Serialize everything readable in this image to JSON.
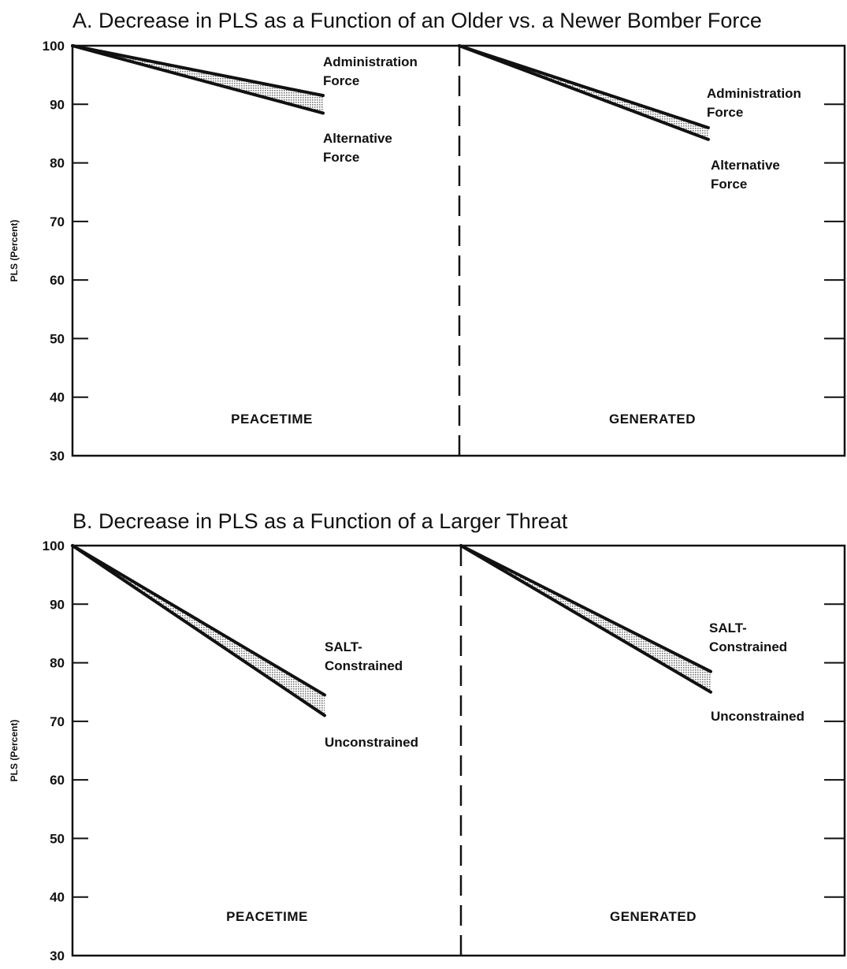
{
  "chart_data": [
    {
      "type": "line",
      "title": "A.  Decrease in PLS as a Function of an Older vs. a Newer Bomber Force",
      "ylabel": "PLS (Percent)",
      "ylim": [
        30,
        100
      ],
      "yticks": [
        "100",
        "90",
        "80",
        "70",
        "60",
        "50",
        "40",
        "30"
      ],
      "yticks_values": [
        100,
        90,
        80,
        70,
        60,
        50,
        40,
        30
      ],
      "panels": [
        {
          "label": "PEACETIME",
          "series": [
            {
              "name": "Administration Force",
              "label_lines": [
                "Administration",
                "Force"
              ],
              "start": 100,
              "end": 91.5
            },
            {
              "name": "Alternative Force",
              "label_lines": [
                "Alternative",
                "Force"
              ],
              "start": 100,
              "end": 88.5
            }
          ]
        },
        {
          "label": "GENERATED",
          "series": [
            {
              "name": "Administration Force",
              "label_lines": [
                "Administration",
                "Force"
              ],
              "start": 100,
              "end": 86
            },
            {
              "name": "Alternative Force",
              "label_lines": [
                "Alternative",
                "Force"
              ],
              "start": 100,
              "end": 84
            }
          ]
        }
      ],
      "grid": false,
      "shading": "stippled band between the two lines"
    },
    {
      "type": "line",
      "title": "B.  Decrease in PLS as a Function of a Larger Threat",
      "ylabel": "PLS (Percent)",
      "ylim": [
        30,
        100
      ],
      "yticks": [
        "100",
        "90",
        "80",
        "70",
        "60",
        "50",
        "40",
        "30"
      ],
      "yticks_values": [
        100,
        90,
        80,
        70,
        60,
        50,
        40,
        30
      ],
      "panels": [
        {
          "label": "PEACETIME",
          "series": [
            {
              "name": "SALT-Constrained",
              "label_lines": [
                "SALT-",
                "Constrained"
              ],
              "start": 100,
              "end": 74.5
            },
            {
              "name": "Unconstrained",
              "label_lines": [
                "Unconstrained"
              ],
              "start": 100,
              "end": 71
            }
          ]
        },
        {
          "label": "GENERATED",
          "series": [
            {
              "name": "SALT-Constrained",
              "label_lines": [
                "SALT-",
                "Constrained"
              ],
              "start": 100,
              "end": 78.5
            },
            {
              "name": "Unconstrained",
              "label_lines": [
                "Unconstrained"
              ],
              "start": 100,
              "end": 75
            }
          ]
        }
      ],
      "grid": false,
      "shading": "stippled band between the two lines"
    }
  ],
  "colors": {
    "ink": "#111111",
    "band": "#999999",
    "background": "#ffffff"
  }
}
